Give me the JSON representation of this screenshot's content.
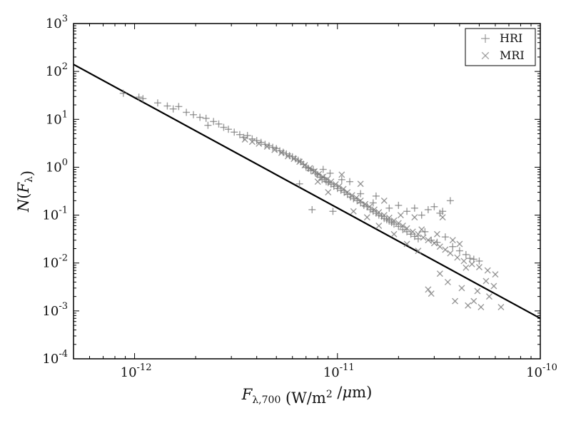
{
  "chart_data": {
    "type": "scatter",
    "x_scale": "log",
    "y_scale": "log",
    "xlim": [
      5e-13,
      1e-10
    ],
    "ylim": [
      0.0001,
      1000
    ],
    "xlabel": {
      "parts": [
        {
          "text": "F",
          "style": "italic"
        },
        {
          "text": "λ,700",
          "style": "sub"
        },
        {
          "text": " (W/m",
          "style": "normal"
        },
        {
          "text": "2",
          "style": "sup"
        },
        {
          "text": " /",
          "style": "normal"
        },
        {
          "text": "μ",
          "style": "italic"
        },
        {
          "text": "m)",
          "style": "normal"
        }
      ]
    },
    "ylabel": {
      "parts": [
        {
          "text": "N",
          "style": "italic"
        },
        {
          "text": "(",
          "style": "normal"
        },
        {
          "text": "F",
          "style": "italic"
        },
        {
          "text": "λ",
          "style": "sub"
        },
        {
          "text": ")",
          "style": "normal"
        }
      ]
    },
    "x_ticks": [
      {
        "value": 1e-12,
        "base": "10",
        "exp": "-12"
      },
      {
        "value": 1e-11,
        "base": "10",
        "exp": "-11"
      },
      {
        "value": 1e-10,
        "base": "10",
        "exp": "-10"
      }
    ],
    "y_ticks": [
      {
        "value": 0.0001,
        "base": "10",
        "exp": "-4"
      },
      {
        "value": 0.001,
        "base": "10",
        "exp": "-3"
      },
      {
        "value": 0.01,
        "base": "10",
        "exp": "-2"
      },
      {
        "value": 0.1,
        "base": "10",
        "exp": "-1"
      },
      {
        "value": 1,
        "base": "10",
        "exp": "0"
      },
      {
        "value": 10,
        "base": "10",
        "exp": "1"
      },
      {
        "value": 100,
        "base": "10",
        "exp": "2"
      },
      {
        "value": 1000,
        "base": "10",
        "exp": "3"
      }
    ],
    "legend": {
      "position": "top-right",
      "entries": [
        {
          "label": "HRI",
          "marker": "+",
          "color": "#8a8a8a"
        },
        {
          "label": "MRI",
          "marker": "x",
          "color": "#8a8a8a"
        }
      ]
    },
    "fit_line": {
      "color": "#000000",
      "points": [
        [
          5e-13,
          140
        ],
        [
          1e-10,
          0.0007
        ]
      ]
    },
    "series": [
      {
        "name": "HRI",
        "marker": "+",
        "color": "#7a7a7a",
        "points": [
          [
            8.8e-13,
            35
          ],
          [
            1.05e-12,
            29
          ],
          [
            1.1e-12,
            27
          ],
          [
            1.3e-12,
            22
          ],
          [
            1.45e-12,
            19
          ],
          [
            1.55e-12,
            16.5
          ],
          [
            1.65e-12,
            18.5
          ],
          [
            1.8e-12,
            14
          ],
          [
            1.95e-12,
            12.5
          ],
          [
            2.1e-12,
            11
          ],
          [
            2.25e-12,
            10.5
          ],
          [
            2.3e-12,
            7.5
          ],
          [
            2.45e-12,
            9
          ],
          [
            2.6e-12,
            8
          ],
          [
            2.75e-12,
            6.8
          ],
          [
            2.9e-12,
            6.2
          ],
          [
            3.1e-12,
            5.4
          ],
          [
            3.3e-12,
            4.8
          ],
          [
            3.45e-12,
            4.2
          ],
          [
            3.6e-12,
            4.6
          ],
          [
            3.8e-12,
            3.9
          ],
          [
            4e-12,
            3.6
          ],
          [
            4.2e-12,
            3.3
          ],
          [
            4.4e-12,
            3.0
          ],
          [
            4.6e-12,
            2.8
          ],
          [
            4.8e-12,
            2.6
          ],
          [
            5e-12,
            2.45
          ],
          [
            5.2e-12,
            2.2
          ],
          [
            5.4e-12,
            2.05
          ],
          [
            5.6e-12,
            1.9
          ],
          [
            5.8e-12,
            1.75
          ],
          [
            6e-12,
            1.65
          ],
          [
            6.2e-12,
            1.5
          ],
          [
            6.4e-12,
            1.4
          ],
          [
            6.6e-12,
            1.3
          ],
          [
            6.8e-12,
            1.15
          ],
          [
            7e-12,
            1.0
          ],
          [
            7.2e-12,
            0.95
          ],
          [
            7.4e-12,
            0.85
          ],
          [
            7.6e-12,
            0.9
          ],
          [
            7.8e-12,
            0.75
          ],
          [
            8e-12,
            0.7
          ],
          [
            8.2e-12,
            0.62
          ],
          [
            8.4e-12,
            0.55
          ],
          [
            8.6e-12,
            0.6
          ],
          [
            8.8e-12,
            0.5
          ],
          [
            9e-12,
            0.48
          ],
          [
            9.3e-12,
            0.44
          ],
          [
            9.6e-12,
            0.4
          ],
          [
            1e-11,
            0.36
          ],
          [
            1.04e-11,
            0.33
          ],
          [
            1.08e-11,
            0.3
          ],
          [
            1.12e-11,
            0.27
          ],
          [
            1.16e-11,
            0.24
          ],
          [
            1.2e-11,
            0.22
          ],
          [
            1.25e-11,
            0.2
          ],
          [
            1.3e-11,
            0.18
          ],
          [
            1.35e-11,
            0.16
          ],
          [
            1.4e-11,
            0.15
          ],
          [
            1.45e-11,
            0.13
          ],
          [
            1.5e-11,
            0.12
          ],
          [
            1.55e-11,
            0.11
          ],
          [
            1.6e-11,
            0.1
          ],
          [
            1.65e-11,
            0.095
          ],
          [
            1.7e-11,
            0.085
          ],
          [
            1.75e-11,
            0.08
          ],
          [
            1.8e-11,
            0.075
          ],
          [
            1.85e-11,
            0.07
          ],
          [
            1.9e-11,
            0.065
          ],
          [
            2e-11,
            0.058
          ],
          [
            2.1e-11,
            0.05
          ],
          [
            2.2e-11,
            0.045
          ],
          [
            2.3e-11,
            0.04
          ],
          [
            2.4e-11,
            0.036
          ],
          [
            2.5e-11,
            0.032
          ],
          [
            6.5e-12,
            0.45
          ],
          [
            7.5e-12,
            0.13
          ],
          [
            9.5e-12,
            0.12
          ],
          [
            1.3e-11,
            0.28
          ],
          [
            1.55e-11,
            0.25
          ],
          [
            1.5e-11,
            0.18
          ],
          [
            1.8e-11,
            0.14
          ],
          [
            2e-11,
            0.16
          ],
          [
            2.2e-11,
            0.12
          ],
          [
            2.4e-11,
            0.14
          ],
          [
            2.6e-11,
            0.1
          ],
          [
            2.8e-11,
            0.13
          ],
          [
            3e-11,
            0.15
          ],
          [
            3.3e-11,
            0.12
          ],
          [
            3.6e-11,
            0.2
          ],
          [
            3.2e-11,
            0.11
          ],
          [
            2.9e-11,
            0.03
          ],
          [
            3.1e-11,
            0.027
          ],
          [
            3.4e-11,
            0.035
          ],
          [
            3.7e-11,
            0.022
          ],
          [
            4e-11,
            0.018
          ],
          [
            4.3e-11,
            0.015
          ],
          [
            4.7e-11,
            0.012
          ],
          [
            5e-11,
            0.011
          ],
          [
            4.5e-11,
            0.0125
          ],
          [
            1.05e-11,
            0.55
          ],
          [
            1.15e-11,
            0.5
          ],
          [
            8.5e-12,
            0.9
          ],
          [
            9.2e-12,
            0.75
          ],
          [
            2.7e-11,
            0.045
          ]
        ]
      },
      {
        "name": "MRI",
        "marker": "x",
        "color": "#7a7a7a",
        "points": [
          [
            3.5e-12,
            3.8
          ],
          [
            3.8e-12,
            3.4
          ],
          [
            4.1e-12,
            3.1
          ],
          [
            4.5e-12,
            2.7
          ],
          [
            4.9e-12,
            2.3
          ],
          [
            5.3e-12,
            2.0
          ],
          [
            5.7e-12,
            1.7
          ],
          [
            6.1e-12,
            1.5
          ],
          [
            6.5e-12,
            1.3
          ],
          [
            6.9e-12,
            1.1
          ],
          [
            7.3e-12,
            0.95
          ],
          [
            7.7e-12,
            0.82
          ],
          [
            8.1e-12,
            0.72
          ],
          [
            8.5e-12,
            0.63
          ],
          [
            8.9e-12,
            0.56
          ],
          [
            9.3e-12,
            0.5
          ],
          [
            9.8e-12,
            0.44
          ],
          [
            1.02e-11,
            0.4
          ],
          [
            1.07e-11,
            0.35
          ],
          [
            1.12e-11,
            0.3
          ],
          [
            1.18e-11,
            0.26
          ],
          [
            1.24e-11,
            0.23
          ],
          [
            1.3e-11,
            0.2
          ],
          [
            1.37e-11,
            0.17
          ],
          [
            1.44e-11,
            0.15
          ],
          [
            1.52e-11,
            0.13
          ],
          [
            1.6e-11,
            0.115
          ],
          [
            1.7e-11,
            0.1
          ],
          [
            1.8e-11,
            0.088
          ],
          [
            1.9e-11,
            0.077
          ],
          [
            2e-11,
            0.068
          ],
          [
            2.1e-11,
            0.06
          ],
          [
            2.2e-11,
            0.053
          ],
          [
            2.35e-11,
            0.045
          ],
          [
            2.5e-11,
            0.04
          ],
          [
            2.65e-11,
            0.034
          ],
          [
            2.8e-11,
            0.03
          ],
          [
            3e-11,
            0.026
          ],
          [
            3.2e-11,
            0.022
          ],
          [
            3.4e-11,
            0.019
          ],
          [
            3.6e-11,
            0.016
          ],
          [
            3.9e-11,
            0.013
          ],
          [
            4.2e-11,
            0.011
          ],
          [
            4.6e-11,
            0.0095
          ],
          [
            5e-11,
            0.0082
          ],
          [
            5.5e-11,
            0.007
          ],
          [
            6e-11,
            0.0058
          ],
          [
            1.4e-11,
            0.09
          ],
          [
            1.6e-11,
            0.06
          ],
          [
            1.9e-11,
            0.04
          ],
          [
            2.2e-11,
            0.025
          ],
          [
            2.5e-11,
            0.018
          ],
          [
            2.8e-11,
            0.0028
          ],
          [
            2.9e-11,
            0.0023
          ],
          [
            3.2e-11,
            0.006
          ],
          [
            3.5e-11,
            0.004
          ],
          [
            3.8e-11,
            0.0016
          ],
          [
            4.1e-11,
            0.003
          ],
          [
            4.4e-11,
            0.0013
          ],
          [
            4.7e-11,
            0.0016
          ],
          [
            5.1e-11,
            0.0012
          ],
          [
            5.4e-11,
            0.0042
          ],
          [
            5.9e-11,
            0.0033
          ],
          [
            6.4e-11,
            0.0012
          ],
          [
            5.6e-11,
            0.002
          ],
          [
            4.9e-11,
            0.0026
          ],
          [
            1.7e-11,
            0.2
          ],
          [
            2.05e-11,
            0.1
          ],
          [
            2.4e-11,
            0.09
          ],
          [
            2.6e-11,
            0.05
          ],
          [
            3.1e-11,
            0.04
          ],
          [
            3.3e-11,
            0.09
          ],
          [
            3.7e-11,
            0.03
          ],
          [
            4e-11,
            0.025
          ],
          [
            4.3e-11,
            0.008
          ],
          [
            1.05e-11,
            0.7
          ],
          [
            9e-12,
            0.3
          ],
          [
            8e-12,
            0.5
          ],
          [
            1.3e-11,
            0.45
          ],
          [
            1.2e-11,
            0.12
          ]
        ]
      }
    ]
  }
}
